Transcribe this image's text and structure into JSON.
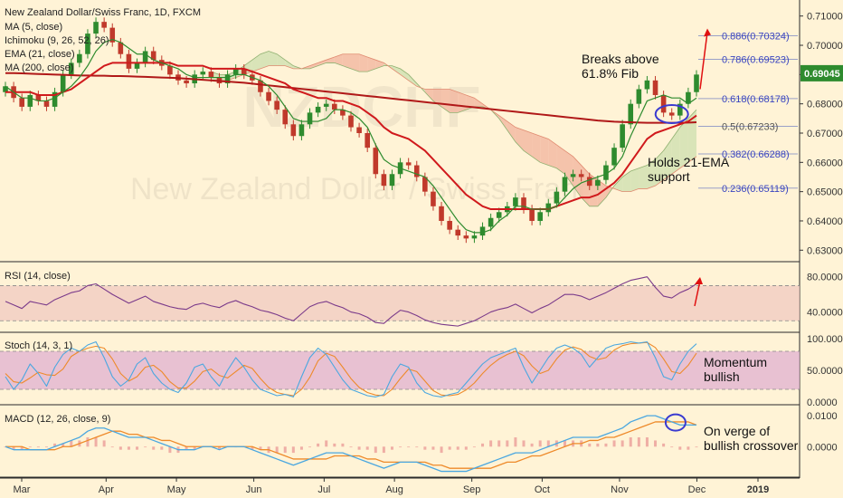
{
  "header": {
    "symbol": "New Zealand Dollar/Swiss Franc, 1D, FXCM",
    "indicators": [
      "MA (5, close)",
      "Ichimoku (9, 26, 52, 26)",
      "EMA (21, close)",
      "MA (200, close)"
    ]
  },
  "watermark": {
    "line1": "NZDCHF",
    "line2": "New Zealand Dollar / Swiss Franc"
  },
  "colors": {
    "bg": "#fff3d6",
    "up": "#2e8b2e",
    "down": "#c0392b",
    "ma5": "#2e8b2e",
    "ema21": "#d0191c",
    "ma200": "#b01818",
    "cloud_red": "#f3b7a0",
    "cloud_green": "#cfe0b0",
    "rsi_band": "#f0c9c0",
    "stoch_band": "#e0b0d0",
    "macd": "#4aa7e0",
    "signal": "#ee8a2a",
    "annotation": "#e01010"
  },
  "chart_data": [
    {
      "type": "line",
      "title": "New Zealand Dollar/Swiss Franc, 1D, FXCM",
      "x_labels": [
        "Mar",
        "Apr",
        "May",
        "Jun",
        "Jul",
        "Aug",
        "Sep",
        "Oct",
        "Nov",
        "Dec",
        "2019"
      ],
      "y_ticks": [
        "0.71000",
        "0.70000",
        "0.69000",
        "0.68000",
        "0.67000",
        "0.66000",
        "0.65000",
        "0.64000",
        "0.63000"
      ],
      "ylim": [
        0.627,
        0.713
      ],
      "last_price": "0.69045",
      "close": [
        0.686,
        0.682,
        0.679,
        0.683,
        0.681,
        0.679,
        0.684,
        0.69,
        0.694,
        0.697,
        0.704,
        0.708,
        0.706,
        0.701,
        0.697,
        0.692,
        0.694,
        0.698,
        0.695,
        0.693,
        0.69,
        0.688,
        0.687,
        0.69,
        0.691,
        0.689,
        0.687,
        0.69,
        0.692,
        0.69,
        0.688,
        0.684,
        0.681,
        0.678,
        0.673,
        0.669,
        0.673,
        0.677,
        0.679,
        0.68,
        0.678,
        0.676,
        0.672,
        0.67,
        0.665,
        0.656,
        0.652,
        0.656,
        0.66,
        0.659,
        0.655,
        0.65,
        0.645,
        0.64,
        0.637,
        0.635,
        0.634,
        0.635,
        0.638,
        0.641,
        0.643,
        0.645,
        0.648,
        0.644,
        0.64,
        0.643,
        0.646,
        0.65,
        0.655,
        0.656,
        0.655,
        0.652,
        0.654,
        0.659,
        0.665,
        0.673,
        0.68,
        0.685,
        0.688,
        0.683,
        0.677,
        0.676,
        0.68,
        0.684,
        0.69
      ],
      "ma5": [
        0.686,
        0.684,
        0.682,
        0.682,
        0.681,
        0.681,
        0.682,
        0.684,
        0.686,
        0.689,
        0.693,
        0.698,
        0.701,
        0.702,
        0.701,
        0.699,
        0.697,
        0.697,
        0.695,
        0.694,
        0.693,
        0.692,
        0.69,
        0.689,
        0.689,
        0.689,
        0.689,
        0.689,
        0.69,
        0.69,
        0.689,
        0.688,
        0.686,
        0.683,
        0.679,
        0.675,
        0.674,
        0.674,
        0.674,
        0.675,
        0.678,
        0.678,
        0.677,
        0.675,
        0.672,
        0.666,
        0.661,
        0.659,
        0.658,
        0.657,
        0.656,
        0.655,
        0.652,
        0.648,
        0.644,
        0.64,
        0.637,
        0.636,
        0.636,
        0.637,
        0.64,
        0.642,
        0.645,
        0.645,
        0.644,
        0.644,
        0.644,
        0.645,
        0.648,
        0.651,
        0.653,
        0.654,
        0.655,
        0.656,
        0.658,
        0.662,
        0.669,
        0.675,
        0.681,
        0.682,
        0.683,
        0.682,
        0.682,
        0.68,
        0.682
      ],
      "ema21": [
        0.684,
        0.684,
        0.684,
        0.684,
        0.683,
        0.683,
        0.683,
        0.684,
        0.685,
        0.687,
        0.689,
        0.691,
        0.693,
        0.694,
        0.694,
        0.694,
        0.694,
        0.694,
        0.694,
        0.694,
        0.694,
        0.693,
        0.693,
        0.693,
        0.693,
        0.692,
        0.692,
        0.692,
        0.692,
        0.692,
        0.691,
        0.69,
        0.689,
        0.688,
        0.687,
        0.685,
        0.684,
        0.683,
        0.682,
        0.682,
        0.681,
        0.681,
        0.68,
        0.679,
        0.677,
        0.675,
        0.672,
        0.67,
        0.669,
        0.668,
        0.666,
        0.664,
        0.661,
        0.658,
        0.655,
        0.652,
        0.649,
        0.647,
        0.645,
        0.644,
        0.644,
        0.644,
        0.644,
        0.644,
        0.644,
        0.644,
        0.644,
        0.645,
        0.646,
        0.647,
        0.648,
        0.648,
        0.649,
        0.651,
        0.653,
        0.656,
        0.66,
        0.664,
        0.668,
        0.67,
        0.671,
        0.672,
        0.673,
        0.674,
        0.676
      ],
      "ma200": [
        0.6905,
        0.6905,
        0.6904,
        0.6903,
        0.6902,
        0.6901,
        0.69,
        0.6899,
        0.6898,
        0.6897,
        0.6897,
        0.6896,
        0.6896,
        0.6895,
        0.6895,
        0.6894,
        0.6893,
        0.6892,
        0.6891,
        0.689,
        0.6889,
        0.6888,
        0.6886,
        0.6884,
        0.6882,
        0.688,
        0.6878,
        0.6876,
        0.6874,
        0.6872,
        0.6869,
        0.6866,
        0.6863,
        0.686,
        0.6857,
        0.6854,
        0.6851,
        0.6848,
        0.6845,
        0.6842,
        0.6839,
        0.6836,
        0.6833,
        0.683,
        0.6827,
        0.6824,
        0.6821,
        0.6818,
        0.6815,
        0.6812,
        0.6809,
        0.6806,
        0.6803,
        0.68,
        0.6797,
        0.6794,
        0.6791,
        0.6788,
        0.6785,
        0.6782,
        0.6779,
        0.6776,
        0.6773,
        0.677,
        0.6767,
        0.6764,
        0.6761,
        0.6758,
        0.6755,
        0.6752,
        0.6749,
        0.6746,
        0.6743,
        0.6741,
        0.6739,
        0.6738,
        0.6737,
        0.6736,
        0.6735,
        0.6735,
        0.6735,
        0.6735,
        0.6735,
        0.6736,
        0.6737
      ],
      "cloud": {
        "span_a": [
          0.691,
          0.69,
          0.69,
          0.691,
          0.693,
          0.695,
          0.697,
          0.698,
          0.697,
          0.695,
          0.693,
          0.692,
          0.692,
          0.693,
          0.694,
          0.694,
          0.693,
          0.692,
          0.691,
          0.691,
          0.692,
          0.693,
          0.693,
          0.692,
          0.69,
          0.687,
          0.684,
          0.681,
          0.679,
          0.677,
          0.677,
          0.678,
          0.679,
          0.679,
          0.678,
          0.675,
          0.671,
          0.667,
          0.664,
          0.662,
          0.66,
          0.659,
          0.658,
          0.656,
          0.652,
          0.648,
          0.645,
          0.645,
          0.648,
          0.652,
          0.655,
          0.657,
          0.658,
          0.659,
          0.661,
          0.664,
          0.668,
          0.672,
          0.675,
          0.678
        ],
        "span_b": [
          0.688,
          0.688,
          0.688,
          0.689,
          0.69,
          0.691,
          0.692,
          0.693,
          0.693,
          0.693,
          0.692,
          0.692,
          0.693,
          0.694,
          0.695,
          0.696,
          0.697,
          0.697,
          0.697,
          0.696,
          0.695,
          0.694,
          0.692,
          0.69,
          0.688,
          0.686,
          0.685,
          0.685,
          0.685,
          0.685,
          0.684,
          0.683,
          0.682,
          0.68,
          0.678,
          0.676,
          0.674,
          0.672,
          0.671,
          0.67,
          0.669,
          0.668,
          0.666,
          0.664,
          0.662,
          0.659,
          0.656,
          0.654,
          0.652,
          0.651,
          0.65,
          0.65,
          0.651,
          0.651,
          0.652,
          0.654,
          0.656,
          0.658,
          0.66,
          0.662
        ]
      },
      "fib_levels": [
        {
          "label": "0.886(0.70324)",
          "value": 0.70324
        },
        {
          "label": "0.786(0.69523)",
          "value": 0.69523
        },
        {
          "label": "0.618(0.68178)",
          "value": 0.68178
        },
        {
          "label": "0.5(0.67233)",
          "value": 0.67233
        },
        {
          "label": "0.382(0.66288)",
          "value": 0.66288
        },
        {
          "label": "0.236(0.65119)",
          "value": 0.65119
        }
      ],
      "annotations": {
        "breaks": "Breaks above\n61.8% Fib",
        "holds": "Holds 21-EMA\nsupport"
      }
    },
    {
      "type": "line",
      "title": "RSI (14, close)",
      "y_ticks": [
        "80.0000",
        "40.0000"
      ],
      "ylim": [
        20,
        90
      ],
      "band": [
        30,
        70
      ],
      "values": [
        52,
        48,
        44,
        52,
        50,
        48,
        54,
        58,
        62,
        64,
        70,
        72,
        66,
        60,
        55,
        50,
        54,
        58,
        52,
        49,
        46,
        44,
        43,
        48,
        50,
        47,
        45,
        50,
        53,
        49,
        46,
        42,
        40,
        37,
        33,
        30,
        38,
        46,
        50,
        52,
        48,
        45,
        40,
        38,
        34,
        28,
        27,
        35,
        42,
        40,
        36,
        31,
        28,
        26,
        25,
        24,
        27,
        30,
        35,
        40,
        43,
        45,
        49,
        44,
        39,
        44,
        48,
        54,
        60,
        60,
        58,
        54,
        58,
        62,
        67,
        72,
        76,
        78,
        80,
        68,
        58,
        56,
        62,
        66,
        72
      ]
    },
    {
      "type": "line",
      "title": "Stoch (14, 3, 1)",
      "y_ticks": [
        "100.0000",
        "50.0000",
        "0.0000"
      ],
      "ylim": [
        0,
        100
      ],
      "band": [
        20,
        80
      ],
      "k": [
        40,
        20,
        35,
        60,
        45,
        25,
        55,
        75,
        85,
        80,
        90,
        95,
        70,
        40,
        25,
        35,
        60,
        70,
        45,
        30,
        20,
        15,
        30,
        55,
        60,
        40,
        25,
        50,
        70,
        55,
        35,
        20,
        15,
        10,
        12,
        8,
        40,
        70,
        85,
        75,
        55,
        35,
        20,
        15,
        10,
        8,
        12,
        40,
        60,
        55,
        30,
        15,
        10,
        8,
        12,
        15,
        30,
        45,
        60,
        70,
        75,
        80,
        85,
        55,
        30,
        50,
        70,
        85,
        90,
        85,
        75,
        55,
        70,
        85,
        90,
        92,
        95,
        93,
        95,
        70,
        40,
        35,
        60,
        80,
        92
      ],
      "d": [
        45,
        32,
        30,
        38,
        47,
        43,
        42,
        52,
        72,
        80,
        85,
        88,
        85,
        68,
        45,
        33,
        40,
        55,
        58,
        48,
        32,
        22,
        22,
        33,
        48,
        52,
        42,
        38,
        48,
        58,
        53,
        37,
        23,
        15,
        12,
        10,
        20,
        39,
        65,
        77,
        72,
        55,
        37,
        23,
        15,
        11,
        10,
        20,
        37,
        52,
        48,
        33,
        18,
        11,
        10,
        12,
        19,
        30,
        45,
        58,
        68,
        75,
        80,
        73,
        57,
        45,
        50,
        68,
        82,
        87,
        83,
        72,
        67,
        70,
        82,
        89,
        92,
        93,
        94,
        86,
        68,
        48,
        45,
        58,
        77
      ]
    },
    {
      "type": "line",
      "title": "MACD (12, 26, close, 9)",
      "y_ticks": [
        "0.0100",
        "0.0000"
      ],
      "ylim": [
        -0.009,
        0.0115
      ],
      "macd": [
        0.0,
        -0.001,
        -0.001,
        -0.001,
        -0.001,
        -0.001,
        0.0,
        0.001,
        0.002,
        0.003,
        0.005,
        0.006,
        0.006,
        0.005,
        0.004,
        0.003,
        0.003,
        0.003,
        0.002,
        0.001,
        0.0,
        -0.001,
        -0.001,
        -0.001,
        0.0,
        0.0,
        -0.001,
        0.0,
        0.0,
        0.0,
        -0.001,
        -0.002,
        -0.003,
        -0.004,
        -0.005,
        -0.006,
        -0.005,
        -0.004,
        -0.003,
        -0.002,
        -0.002,
        -0.002,
        -0.003,
        -0.004,
        -0.005,
        -0.006,
        -0.007,
        -0.006,
        -0.005,
        -0.005,
        -0.005,
        -0.006,
        -0.007,
        -0.008,
        -0.008,
        -0.008,
        -0.008,
        -0.007,
        -0.006,
        -0.005,
        -0.004,
        -0.003,
        -0.002,
        -0.002,
        -0.002,
        -0.001,
        0.0,
        0.001,
        0.002,
        0.003,
        0.003,
        0.003,
        0.003,
        0.004,
        0.005,
        0.006,
        0.008,
        0.009,
        0.01,
        0.01,
        0.009,
        0.008,
        0.007,
        0.007,
        0.007
      ],
      "signal": [
        0.0,
        0.0,
        0.0,
        -0.001,
        -0.001,
        -0.001,
        -0.001,
        0.0,
        0.0,
        0.001,
        0.002,
        0.003,
        0.004,
        0.005,
        0.005,
        0.004,
        0.004,
        0.003,
        0.003,
        0.002,
        0.002,
        0.001,
        0.0,
        0.0,
        0.0,
        0.0,
        0.0,
        0.0,
        0.0,
        0.0,
        0.0,
        -0.001,
        -0.001,
        -0.002,
        -0.003,
        -0.004,
        -0.004,
        -0.004,
        -0.004,
        -0.004,
        -0.003,
        -0.003,
        -0.003,
        -0.003,
        -0.004,
        -0.004,
        -0.005,
        -0.005,
        -0.005,
        -0.005,
        -0.005,
        -0.005,
        -0.006,
        -0.006,
        -0.007,
        -0.007,
        -0.007,
        -0.007,
        -0.007,
        -0.007,
        -0.006,
        -0.005,
        -0.005,
        -0.004,
        -0.003,
        -0.003,
        -0.002,
        -0.001,
        0.0,
        0.001,
        0.001,
        0.002,
        0.002,
        0.003,
        0.003,
        0.004,
        0.005,
        0.006,
        0.007,
        0.008,
        0.008,
        0.008,
        0.008,
        0.008,
        0.007
      ],
      "annotation": "On verge of\nbullish crossover"
    }
  ],
  "side_annotations": {
    "stoch": "Momentum\nbullish"
  }
}
